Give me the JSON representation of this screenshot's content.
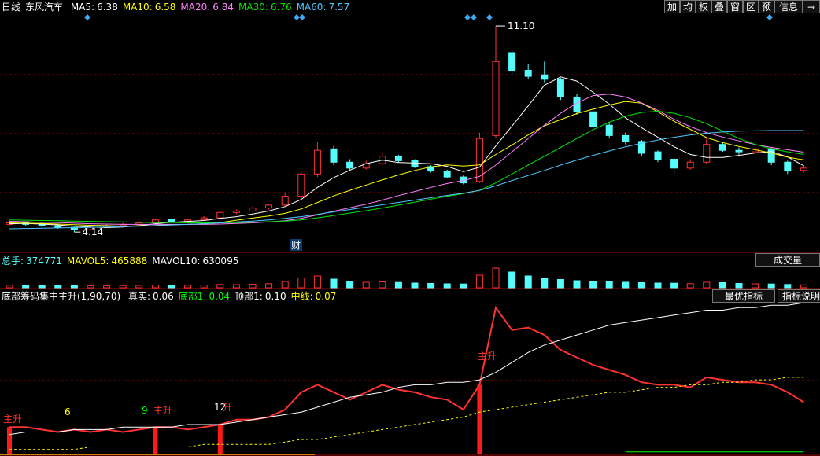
{
  "toolbar": {
    "period": "日线",
    "stock": "东风汽车",
    "buttons": [
      "加",
      "均",
      "权",
      "叠",
      "窗",
      "区",
      "预",
      "信息"
    ]
  },
  "chart_data": [
    {
      "type": "candlestick",
      "legend": [
        {
          "label": "MA5:",
          "value": 6.38,
          "color": "#ffffff"
        },
        {
          "label": "MA10:",
          "value": 6.58,
          "color": "#ffff00"
        },
        {
          "label": "MA20:",
          "value": 6.84,
          "color": "#ff80ff"
        },
        {
          "label": "MA30:",
          "value": 6.76,
          "color": "#00e600"
        },
        {
          "label": "MA60:",
          "value": 7.57,
          "color": "#4fc8ff"
        }
      ],
      "open": [
        4.4,
        4.45,
        4.42,
        4.35,
        4.3,
        4.22,
        4.3,
        4.36,
        4.4,
        4.45,
        4.56,
        4.5,
        4.55,
        4.62,
        4.8,
        4.85,
        4.95,
        5.05,
        5.35,
        6.1,
        6.95,
        6.5,
        6.3,
        6.45,
        6.7,
        6.55,
        6.35,
        6.2,
        6.0,
        5.85,
        7.4,
        10.2,
        9.6,
        9.45,
        9.3,
        8.7,
        8.2,
        7.75,
        7.4,
        7.2,
        6.85,
        6.6,
        6.3,
        6.5,
        7.1,
        6.9,
        6.85,
        6.95,
        6.5,
        6.22
      ],
      "high": [
        4.55,
        4.5,
        4.48,
        4.4,
        4.32,
        4.35,
        4.4,
        4.45,
        4.5,
        4.6,
        4.6,
        4.6,
        4.68,
        4.85,
        4.9,
        5.0,
        5.1,
        5.45,
        6.2,
        7.2,
        7.05,
        6.6,
        6.55,
        6.8,
        6.75,
        6.6,
        6.4,
        6.25,
        6.05,
        7.5,
        11.1,
        10.3,
        9.8,
        9.9,
        9.35,
        8.8,
        8.3,
        7.85,
        7.5,
        7.25,
        6.9,
        6.65,
        6.6,
        7.3,
        7.2,
        7.0,
        7.1,
        7.0,
        6.55,
        6.4
      ],
      "low": [
        4.35,
        4.35,
        4.3,
        4.25,
        4.14,
        4.2,
        4.28,
        4.32,
        4.38,
        4.42,
        4.45,
        4.48,
        4.52,
        4.6,
        4.75,
        4.82,
        4.9,
        5.0,
        5.3,
        6.0,
        6.4,
        6.2,
        6.25,
        6.4,
        6.5,
        6.3,
        6.15,
        5.95,
        5.75,
        5.8,
        7.3,
        9.4,
        9.3,
        9.2,
        8.6,
        8.1,
        7.6,
        7.3,
        7.1,
        6.7,
        6.5,
        6.1,
        6.25,
        6.45,
        6.85,
        6.75,
        6.8,
        6.4,
        6.1,
        6.15
      ],
      "close": [
        4.45,
        4.4,
        4.35,
        4.3,
        4.22,
        4.3,
        4.35,
        4.4,
        4.45,
        4.55,
        4.5,
        4.55,
        4.62,
        4.8,
        4.85,
        4.95,
        5.05,
        5.35,
        6.1,
        6.9,
        6.5,
        6.3,
        6.45,
        6.7,
        6.55,
        6.35,
        6.2,
        6.0,
        5.8,
        7.3,
        9.9,
        9.6,
        9.4,
        9.3,
        8.7,
        8.2,
        7.7,
        7.4,
        7.2,
        6.8,
        6.6,
        6.3,
        6.5,
        7.1,
        6.9,
        6.85,
        6.95,
        6.5,
        6.2,
        6.3
      ],
      "series": [
        {
          "color": "#ffffff",
          "values": [
            4.42,
            4.43,
            4.41,
            4.38,
            4.34,
            4.31,
            4.29,
            4.31,
            4.36,
            4.42,
            4.47,
            4.5,
            4.53,
            4.6,
            4.66,
            4.75,
            4.85,
            5.0,
            5.24,
            5.65,
            5.98,
            6.23,
            6.45,
            6.57,
            6.49,
            6.47,
            6.45,
            6.36,
            6.18,
            6.33,
            7.05,
            7.72,
            8.4,
            9.1,
            9.38,
            9.24,
            8.86,
            8.46,
            8.0,
            7.66,
            7.34,
            7.02,
            6.76,
            6.66,
            6.66,
            6.73,
            6.81,
            6.86,
            6.68,
            6.38
          ]
        },
        {
          "color": "#ffff00",
          "values": [
            4.45,
            4.44,
            4.43,
            4.41,
            4.39,
            4.37,
            4.36,
            4.34,
            4.35,
            4.36,
            4.39,
            4.4,
            4.42,
            4.46,
            4.54,
            4.61,
            4.68,
            4.77,
            4.92,
            5.14,
            5.36,
            5.55,
            5.73,
            5.9,
            6.07,
            6.22,
            6.34,
            6.41,
            6.37,
            6.41,
            6.76,
            7.08,
            7.42,
            7.73,
            7.94,
            8.14,
            8.29,
            8.43,
            8.55,
            8.49,
            8.2,
            7.88,
            7.61,
            7.33,
            7.16,
            7.03,
            6.92,
            6.81,
            6.67,
            6.58
          ]
        },
        {
          "color": "#ff80ff",
          "values": [
            4.5,
            4.49,
            4.47,
            4.46,
            4.44,
            4.42,
            4.41,
            4.4,
            4.4,
            4.4,
            4.4,
            4.4,
            4.4,
            4.41,
            4.43,
            4.45,
            4.48,
            4.52,
            4.6,
            4.72,
            4.84,
            4.96,
            5.08,
            5.22,
            5.37,
            5.51,
            5.65,
            5.78,
            5.88,
            6.02,
            6.4,
            6.85,
            7.3,
            7.75,
            8.15,
            8.5,
            8.75,
            8.8,
            8.7,
            8.5,
            8.25,
            7.95,
            7.7,
            7.5,
            7.35,
            7.22,
            7.1,
            7.0,
            6.92,
            6.84
          ]
        },
        {
          "color": "#00e600",
          "values": [
            4.55,
            4.54,
            4.53,
            4.52,
            4.51,
            4.5,
            4.49,
            4.48,
            4.47,
            4.46,
            4.46,
            4.45,
            4.45,
            4.45,
            4.46,
            4.47,
            4.49,
            4.51,
            4.55,
            4.62,
            4.7,
            4.78,
            4.86,
            4.95,
            5.05,
            5.15,
            5.25,
            5.35,
            5.44,
            5.55,
            5.8,
            6.1,
            6.4,
            6.7,
            7.0,
            7.3,
            7.6,
            7.85,
            8.05,
            8.18,
            8.22,
            8.15,
            8.0,
            7.8,
            7.55,
            7.3,
            7.1,
            6.95,
            6.85,
            6.76
          ]
        },
        {
          "color": "#4fc8ff",
          "values": [
            4.25,
            4.26,
            4.27,
            4.28,
            4.29,
            4.3,
            4.31,
            4.32,
            4.34,
            4.36,
            4.38,
            4.4,
            4.42,
            4.45,
            4.48,
            4.51,
            4.55,
            4.6,
            4.66,
            4.74,
            4.82,
            4.9,
            4.98,
            5.06,
            5.14,
            5.22,
            5.3,
            5.38,
            5.45,
            5.55,
            5.7,
            5.88,
            6.05,
            6.22,
            6.4,
            6.57,
            6.73,
            6.88,
            7.02,
            7.14,
            7.25,
            7.34,
            7.42,
            7.48,
            7.52,
            7.55,
            7.56,
            7.57,
            7.57,
            7.57
          ]
        }
      ],
      "ylim": [
        3.48,
        11.5
      ],
      "max_label": {
        "value": 11.1,
        "label": "11.10"
      },
      "min_label": 4.14,
      "annotations": [
        "财"
      ],
      "rise_color": "#ff3232",
      "fall_color": "#54fcfc"
    },
    {
      "type": "volume",
      "legend": [
        {
          "label": "总手:",
          "value": 374771,
          "color": "#54fcfc"
        },
        {
          "label": "MAVOL5:",
          "value": 465888,
          "color": "#ffff00"
        },
        {
          "label": "MAVOL10:",
          "value": 630095,
          "color": "#ffffff"
        }
      ],
      "button": "成交量",
      "values": [
        320000,
        280000,
        260000,
        250000,
        300000,
        260000,
        240000,
        280000,
        300000,
        350000,
        300000,
        320000,
        340000,
        420000,
        400000,
        450000,
        520000,
        800000,
        1250000,
        1500000,
        1100000,
        800000,
        700000,
        750000,
        680000,
        600000,
        550000,
        500000,
        480000,
        1600000,
        2500000,
        2000000,
        1500000,
        1200000,
        1050000,
        900000,
        850000,
        780000,
        700000,
        650000,
        600000,
        580000,
        520000,
        700000,
        650000,
        550000,
        500000,
        480000,
        420000,
        374771
      ],
      "ylim": [
        0,
        2600000
      ]
    },
    {
      "type": "indicator",
      "title": "底部筹码集中主升(1,90,70)",
      "legend": [
        {
          "label": "真实:",
          "value": 0.06,
          "color": "#ffffff"
        },
        {
          "label": "底部1:",
          "value": 0.04,
          "color": "#00ff00"
        },
        {
          "label": "顶部1:",
          "value": {
            "value": 0.1,
            "label": "0.10"
          },
          "color": "#ffffff"
        },
        {
          "label": "中线:",
          "value": 0.07,
          "color": "#ffff00"
        }
      ],
      "buttons": [
        "最优指标",
        "指标说明"
      ],
      "series": [
        {
          "color": "#ff3232",
          "dash": false,
          "values": [
            0.05,
            0.05,
            0.049,
            0.048,
            0.049,
            0.048,
            0.049,
            0.048,
            0.049,
            0.05,
            0.05,
            0.049,
            0.05,
            0.051,
            0.053,
            0.053,
            0.054,
            0.057,
            0.064,
            0.067,
            0.064,
            0.061,
            0.064,
            0.067,
            0.065,
            0.064,
            0.062,
            0.061,
            0.057,
            0.067,
            0.098,
            0.089,
            0.09,
            0.087,
            0.081,
            0.078,
            0.075,
            0.073,
            0.071,
            0.068,
            0.067,
            0.067,
            0.066,
            0.07,
            0.069,
            0.068,
            0.068,
            0.067,
            0.064,
            0.06
          ]
        },
        {
          "color": "#00ff00",
          "dash": false,
          "values": [
            null,
            null,
            null,
            null,
            null,
            null,
            null,
            null,
            null,
            null,
            null,
            null,
            null,
            null,
            null,
            null,
            null,
            null,
            null,
            null,
            null,
            null,
            null,
            null,
            null,
            null,
            null,
            null,
            null,
            null,
            null,
            null,
            null,
            null,
            null,
            null,
            null,
            null,
            0.04,
            0.04,
            0.04,
            0.04,
            0.04,
            0.04,
            0.04,
            0.04,
            0.04,
            0.04,
            0.04,
            0.04
          ]
        },
        {
          "color": "#ffffff",
          "dash": false,
          "values": [
            0.047,
            0.048,
            0.048,
            0.048,
            0.049,
            0.049,
            0.049,
            0.05,
            0.05,
            0.05,
            0.05,
            0.051,
            0.051,
            0.051,
            0.052,
            0.053,
            0.054,
            0.055,
            0.056,
            0.058,
            0.06,
            0.062,
            0.063,
            0.064,
            0.066,
            0.067,
            0.067,
            0.068,
            0.068,
            0.069,
            0.072,
            0.076,
            0.08,
            0.083,
            0.085,
            0.087,
            0.089,
            0.091,
            0.092,
            0.093,
            0.094,
            0.095,
            0.096,
            0.097,
            0.097,
            0.098,
            0.098,
            0.099,
            0.099,
            0.1
          ]
        },
        {
          "color": "#ffff00",
          "dash": true,
          "values": [
            0.041,
            0.041,
            0.041,
            0.041,
            0.041,
            0.042,
            0.042,
            0.042,
            0.042,
            0.042,
            0.042,
            0.042,
            0.043,
            0.043,
            0.043,
            0.043,
            0.043,
            0.044,
            0.045,
            0.045,
            0.046,
            0.047,
            0.048,
            0.049,
            0.05,
            0.051,
            0.052,
            0.053,
            0.054,
            0.056,
            0.057,
            0.058,
            0.059,
            0.06,
            0.061,
            0.062,
            0.063,
            0.064,
            0.064,
            0.065,
            0.066,
            0.066,
            0.067,
            0.067,
            0.068,
            0.068,
            0.069,
            0.069,
            0.07,
            0.07
          ]
        }
      ],
      "signals": {
        "color": "#ff1a1a",
        "values": [
          0.05,
          null,
          null,
          null,
          null,
          null,
          null,
          null,
          null,
          0.05,
          null,
          null,
          null,
          0.051,
          null,
          null,
          null,
          null,
          null,
          null,
          null,
          null,
          null,
          null,
          null,
          null,
          null,
          null,
          null,
          0.067,
          null,
          null,
          null,
          null,
          null,
          null,
          null,
          null,
          null,
          null,
          null,
          null,
          null,
          null,
          null,
          null,
          null,
          null,
          null,
          null
        ]
      },
      "annotations": [
        {
          "text": "主升",
          "color": "#ff3232"
        },
        {
          "text": "6",
          "color": "#ffff00"
        },
        {
          "text": "9",
          "color": "#00ff00"
        },
        {
          "text": "主升",
          "color": "#ff3232"
        },
        {
          "text": "12",
          "color": "#ffffff"
        },
        {
          "text": "升",
          "color": "#ff3232"
        },
        {
          "text": "主升",
          "color": "#ff3232"
        }
      ],
      "ylim": [
        0.039,
        0.1
      ]
    }
  ]
}
